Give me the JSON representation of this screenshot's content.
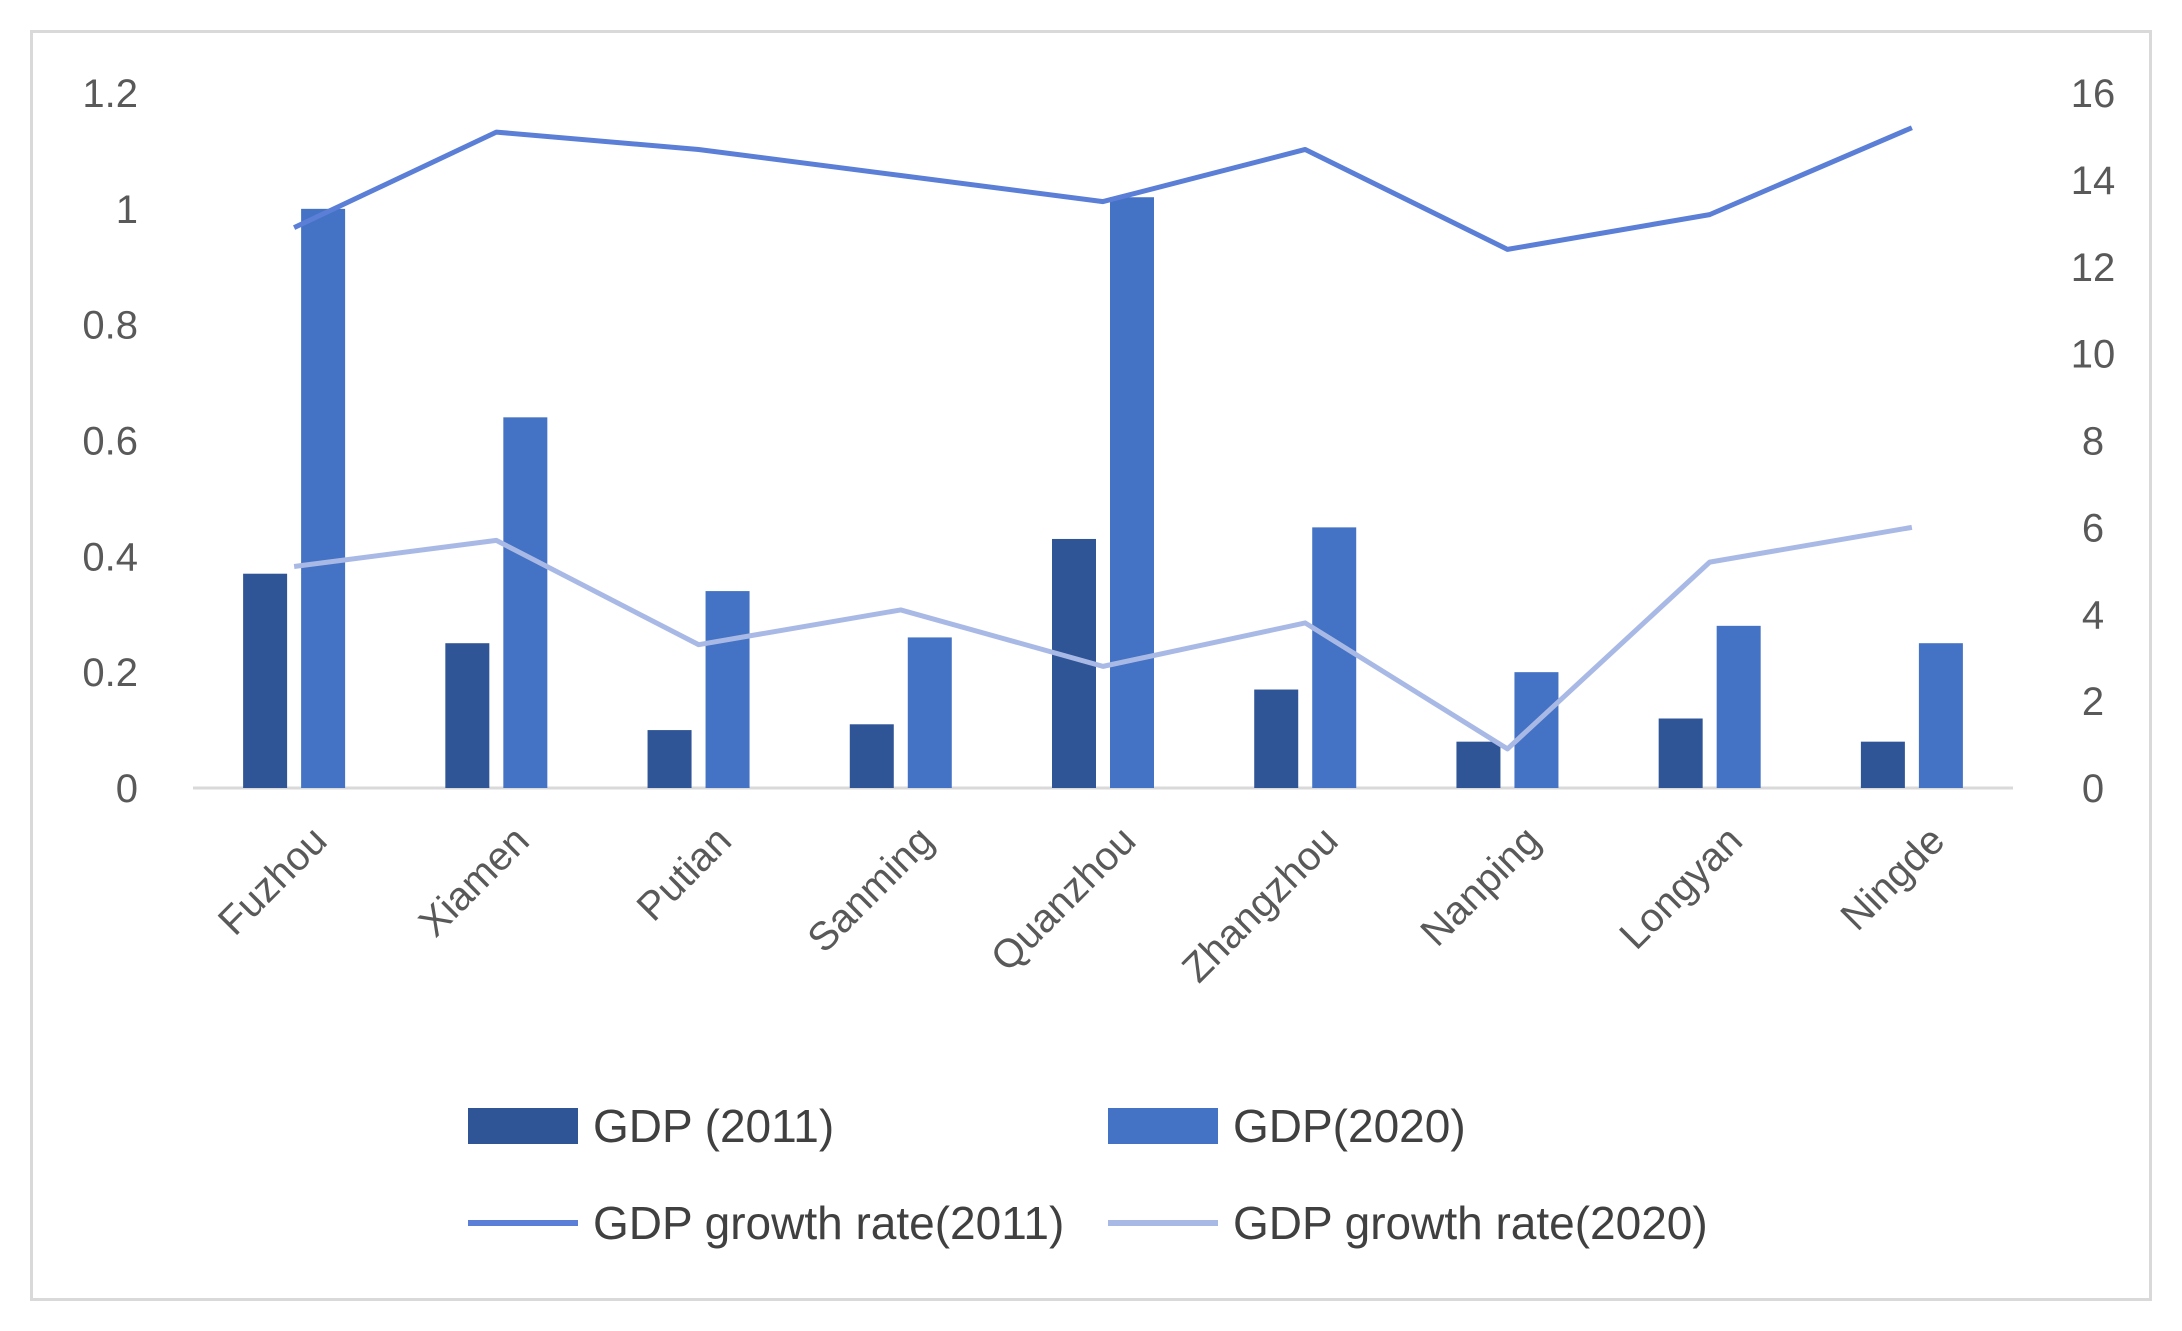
{
  "chart_data": {
    "type": "bar",
    "categories": [
      "Fuzhou",
      "Xiamen",
      "Putian",
      "Sanming",
      "Quanzhou",
      "Zhangzhou",
      "Nanping",
      "Longyan",
      "Ningde"
    ],
    "series": [
      {
        "name": "GDP (2011)",
        "kind": "bar",
        "axis": "left",
        "color": "#2f5597",
        "values": [
          0.37,
          0.25,
          0.1,
          0.11,
          0.43,
          0.17,
          0.08,
          0.12,
          0.08
        ]
      },
      {
        "name": "GDP(2020)",
        "kind": "bar",
        "axis": "left",
        "color": "#4472c4",
        "values": [
          1.0,
          0.64,
          0.34,
          0.26,
          1.02,
          0.45,
          0.2,
          0.28,
          0.25
        ]
      },
      {
        "name": "GDP growth rate(2011)",
        "kind": "line",
        "axis": "right",
        "color": "#5b7fd6",
        "values": [
          12.9,
          15.1,
          14.7,
          14.1,
          13.5,
          14.7,
          12.4,
          13.2,
          15.2
        ]
      },
      {
        "name": "GDP growth rate(2020)",
        "kind": "line",
        "axis": "right",
        "color": "#a9b9e6",
        "values": [
          5.1,
          5.7,
          3.3,
          4.1,
          2.8,
          3.8,
          0.9,
          5.2,
          6.0
        ]
      }
    ],
    "y_left": {
      "min": 0,
      "max": 1.2,
      "ticks": [
        "0",
        "0.2",
        "0.4",
        "0.6",
        "0.8",
        "1",
        "1.2"
      ]
    },
    "y_right": {
      "min": 0,
      "max": 16,
      "ticks": [
        "0",
        "2",
        "4",
        "6",
        "8",
        "10",
        "12",
        "14",
        "16"
      ]
    },
    "legend": {
      "position": "bottom"
    },
    "grid": false,
    "title": "",
    "xlabel": "",
    "ylabel": ""
  }
}
